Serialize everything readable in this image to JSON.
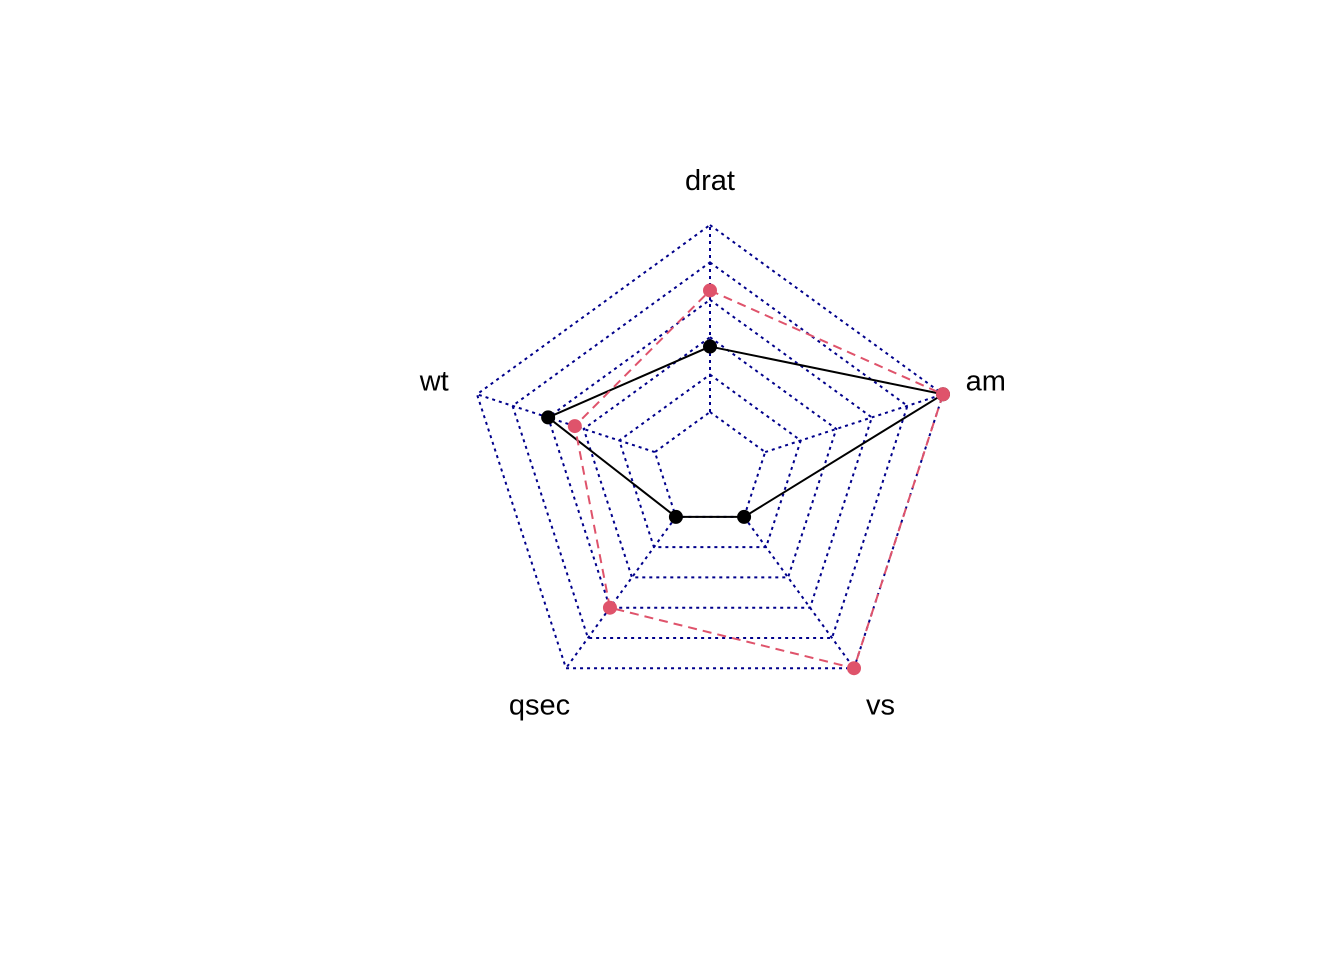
{
  "chart_data": {
    "type": "radar",
    "axes": [
      "drat",
      "am",
      "vs",
      "qsec",
      "wt"
    ],
    "rlim": [
      0,
      1
    ],
    "grid_levels": 5,
    "grid_line_style": "dotted",
    "series": [
      {
        "values": [
          0.35,
          1.0,
          0.0,
          0.0,
          0.6
        ],
        "color": "#000000",
        "line_style": "solid"
      },
      {
        "values": [
          0.65,
          1.0,
          1.0,
          0.6,
          0.45
        ],
        "color": "#DF536B",
        "line_style": "dashed"
      }
    ],
    "colors": {
      "grid": "#00008B",
      "series_1": "#000000",
      "series_2": "#DF536B"
    }
  }
}
